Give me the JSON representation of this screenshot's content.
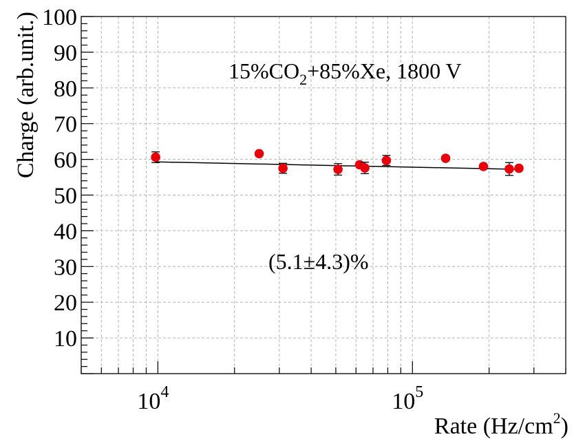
{
  "chart_data": {
    "type": "scatter",
    "title": "",
    "xlabel": "Rate (Hz/cm",
    "xlabel_sup": "2",
    "xlabel_suffix": ")",
    "ylabel": "Charge (arb.unit.)",
    "x_scale": "log",
    "xlim": [
      5000,
      400000
    ],
    "ylim": [
      0,
      100
    ],
    "y_ticks": [
      10,
      20,
      30,
      40,
      50,
      60,
      70,
      80,
      90,
      100
    ],
    "y_tick_labels": [
      "10",
      "20",
      "30",
      "40",
      "50",
      "60",
      "70",
      "80",
      "90",
      "100"
    ],
    "x_major_ticks": [
      10000,
      100000
    ],
    "x_tick_labels": [
      {
        "base": "10",
        "exp": "4"
      },
      {
        "base": "10",
        "exp": "5"
      }
    ],
    "grid": true,
    "series": [
      {
        "marker_color": "#e8000b",
        "points": [
          {
            "x": 9800,
            "y": 60.6,
            "err": 1.5
          },
          {
            "x": 25000,
            "y": 61.6,
            "err": 0
          },
          {
            "x": 31000,
            "y": 57.5,
            "err": 1.4
          },
          {
            "x": 51000,
            "y": 57.2,
            "err": 1.6
          },
          {
            "x": 62000,
            "y": 58.5,
            "err": 0
          },
          {
            "x": 65000,
            "y": 57.6,
            "err": 1.6
          },
          {
            "x": 79000,
            "y": 59.7,
            "err": 1.4
          },
          {
            "x": 135000,
            "y": 60.3,
            "err": 0
          },
          {
            "x": 190000,
            "y": 58.0,
            "err": 0
          },
          {
            "x": 240000,
            "y": 57.3,
            "err": 1.8
          },
          {
            "x": 262000,
            "y": 57.5,
            "err": 0
          }
        ]
      }
    ],
    "fit_line": {
      "color": "#000000",
      "x": [
        9800,
        262000
      ],
      "y": [
        59.3,
        57.2
      ]
    },
    "annotations": [
      {
        "id": "gas",
        "parts": [
          "15%CO",
          "2",
          "+85%Xe, 1800 V"
        ]
      },
      {
        "id": "slope",
        "text": "(5.1±4.3)%"
      }
    ]
  }
}
